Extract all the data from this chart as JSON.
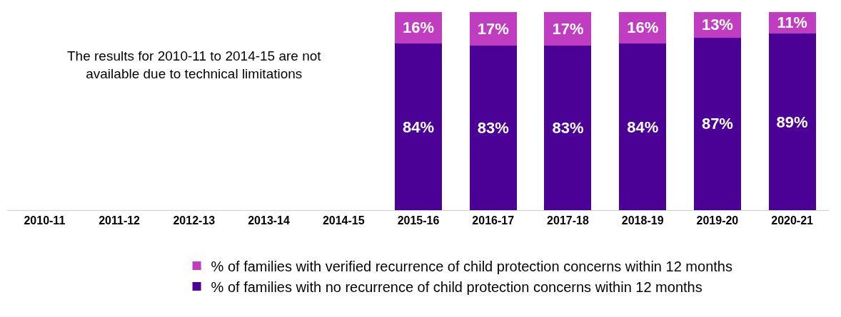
{
  "chart_data": {
    "type": "bar",
    "stacked": true,
    "data_labels": true,
    "legend": "bottom",
    "categories": [
      "2010-11",
      "2011-12",
      "2012-13",
      "2013-14",
      "2014-15",
      "2015-16",
      "2016-17",
      "2017-18",
      "2018-19",
      "2019-20",
      "2020-21"
    ],
    "series": [
      {
        "name": "% of families with no recurrence of child protection concerns within 12 months",
        "color": "#4b0096",
        "values": [
          null,
          null,
          null,
          null,
          null,
          84,
          83,
          83,
          84,
          87,
          89
        ],
        "value_labels": [
          null,
          null,
          null,
          null,
          null,
          "84%",
          "83%",
          "83%",
          "84%",
          "87%",
          "89%"
        ]
      },
      {
        "name": "% of families with verified recurrence of child protection concerns within 12 months",
        "color": "#c03cc0",
        "values": [
          null,
          null,
          null,
          null,
          null,
          16,
          17,
          17,
          16,
          13,
          11
        ],
        "value_labels": [
          null,
          null,
          null,
          null,
          null,
          "16%",
          "17%",
          "17%",
          "16%",
          "13%",
          "11%"
        ]
      }
    ],
    "annotations": [
      "The results for 2010-11 to 2014-15 are not available due to technical limitations"
    ]
  }
}
